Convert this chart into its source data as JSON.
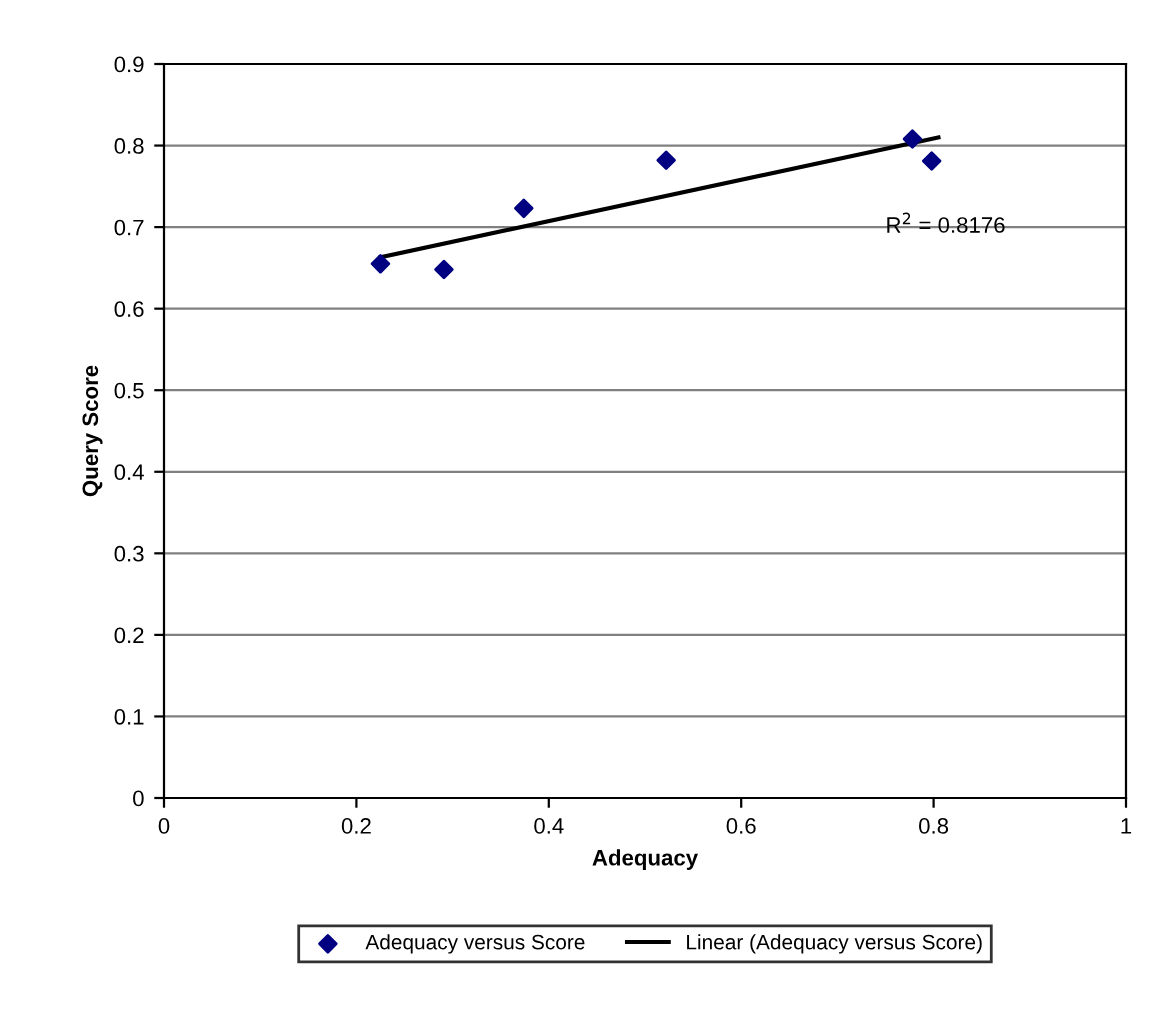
{
  "chart_data": {
    "type": "scatter",
    "xlabel": "Adequacy",
    "ylabel": "Query Score",
    "xlim": [
      0,
      1
    ],
    "xticks": [
      0,
      0.2,
      0.4,
      0.6,
      0.8,
      1
    ],
    "ylim": [
      0,
      0.9
    ],
    "yticks": [
      0,
      0.1,
      0.2,
      0.3,
      0.4,
      0.5,
      0.6,
      0.7,
      0.8,
      0.9
    ],
    "grid": "y",
    "legend": "bottom",
    "series": [
      {
        "name": "Adequacy versus Score",
        "color": "#000080",
        "marker": "diamond",
        "x": [
          0.225,
          0.291,
          0.374,
          0.522,
          0.778,
          0.798
        ],
        "values": [
          0.655,
          0.648,
          0.723,
          0.782,
          0.808,
          0.781
        ]
      },
      {
        "name": "Linear (Adequacy versus Score)",
        "type": "line",
        "marker": "none",
        "color": "#000000",
        "x": [
          0.225,
          0.805
        ],
        "values": [
          0.663,
          0.81
        ]
      }
    ],
    "annotations": [
      "R$^{2}$ = 0.8176"
    ]
  }
}
